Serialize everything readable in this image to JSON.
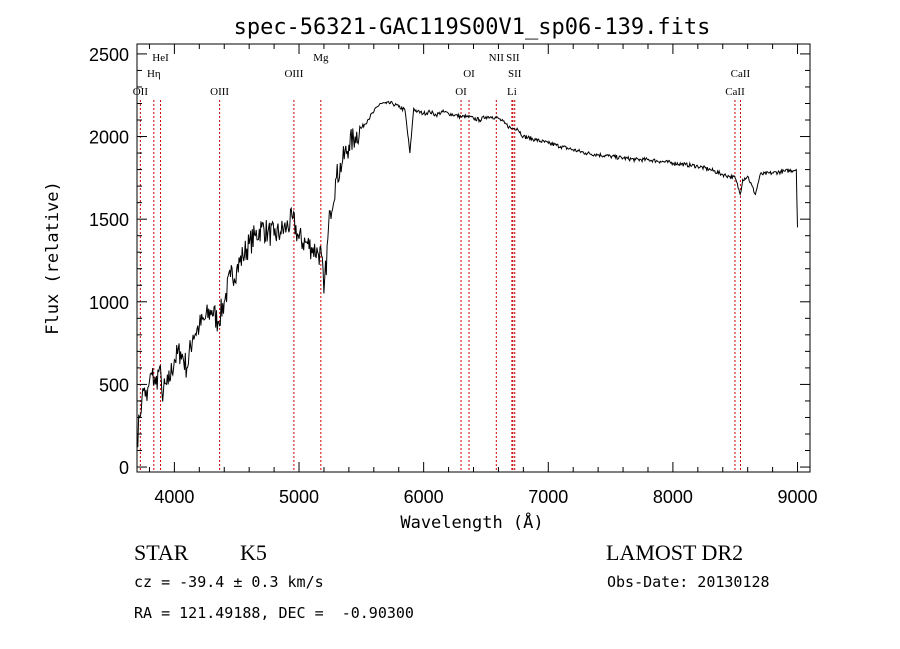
{
  "chart_data": {
    "type": "line",
    "title": "spec-56321-GAC119S00V1_sp06-139.fits",
    "xlabel": "Wavelength (Å)",
    "ylabel": "Flux (relative)",
    "xlim": [
      3700,
      9100
    ],
    "ylim": [
      -30,
      2560
    ],
    "xticks": [
      4000,
      5000,
      6000,
      7000,
      8000,
      9000
    ],
    "yticks": [
      0,
      500,
      1000,
      1500,
      2000,
      2500
    ],
    "grid": false,
    "line_color": "#000000",
    "marker_color": "#cc0000",
    "series": [
      {
        "x": [
          3700,
          3720,
          3740,
          3760,
          3780,
          3800,
          3820,
          3850,
          3880,
          3900,
          3950,
          4000,
          4050,
          4100,
          4150,
          4200,
          4250,
          4300,
          4350,
          4400,
          4450,
          4500,
          4550,
          4600,
          4650,
          4700,
          4750,
          4800,
          4850,
          4900,
          4950,
          5000,
          5050,
          5100,
          5150,
          5180,
          5200,
          5250,
          5300,
          5350,
          5400,
          5450,
          5500,
          5550,
          5600,
          5650,
          5700,
          5750,
          5800,
          5850,
          5890,
          5920,
          5950,
          6000,
          6050,
          6100,
          6150,
          6200,
          6250,
          6300,
          6350,
          6400,
          6450,
          6500,
          6550,
          6600,
          6650,
          6700,
          6750,
          6800,
          6900,
          7000,
          7100,
          7200,
          7300,
          7400,
          7500,
          7600,
          7700,
          7800,
          7900,
          8000,
          8100,
          8200,
          8300,
          8400,
          8450,
          8500,
          8540,
          8560,
          8600,
          8662,
          8700,
          8800,
          8900,
          8990,
          9000
        ],
        "y": [
          150,
          300,
          420,
          480,
          400,
          520,
          560,
          500,
          600,
          450,
          500,
          650,
          700,
          600,
          800,
          850,
          900,
          950,
          880,
          1000,
          1150,
          1200,
          1280,
          1350,
          1400,
          1450,
          1420,
          1400,
          1420,
          1450,
          1500,
          1380,
          1360,
          1330,
          1300,
          1280,
          1050,
          1550,
          1750,
          1850,
          1950,
          2000,
          2050,
          2100,
          2150,
          2200,
          2200,
          2200,
          2180,
          2160,
          1900,
          2170,
          2150,
          2140,
          2150,
          2130,
          2150,
          2140,
          2130,
          2120,
          2120,
          2110,
          2100,
          2120,
          2120,
          2110,
          2080,
          2050,
          2050,
          2000,
          1980,
          1960,
          1940,
          1920,
          1900,
          1890,
          1880,
          1870,
          1860,
          1860,
          1850,
          1840,
          1830,
          1820,
          1800,
          1770,
          1760,
          1750,
          1650,
          1740,
          1760,
          1650,
          1770,
          1780,
          1790,
          1800,
          1450
        ]
      }
    ],
    "lines": [
      {
        "name": "OII",
        "x": 3727,
        "row": 3
      },
      {
        "name": "Hη",
        "x": 3835,
        "row": 2
      },
      {
        "name": "HeI",
        "x": 3889,
        "row": 1
      },
      {
        "name": "OIII",
        "x": 4363,
        "row": 3
      },
      {
        "name": "OIII",
        "x": 4959,
        "row": 2
      },
      {
        "name": "Mg",
        "x": 5175,
        "row": 1
      },
      {
        "name": "OI",
        "x": 6300,
        "row": 3
      },
      {
        "name": "OI",
        "x": 6364,
        "row": 2
      },
      {
        "name": "NII",
        "x": 6583,
        "row": 1
      },
      {
        "name": "SII",
        "x": 6716,
        "row": 1
      },
      {
        "name": "SII",
        "x": 6731,
        "row": 2
      },
      {
        "name": "Li",
        "x": 6708,
        "row": 3
      },
      {
        "name": "CaII",
        "x": 8498,
        "row": 3
      },
      {
        "name": "CaII",
        "x": 8542,
        "row": 2
      }
    ]
  },
  "info": {
    "class": "STAR",
    "subclass": "K5",
    "survey": "LAMOST DR2",
    "cz": "cz = -39.4 ± 0.3 km/s",
    "obs_date": "Obs-Date: 20130128",
    "coords": "RA = 121.49188, DEC =  -0.90300"
  }
}
